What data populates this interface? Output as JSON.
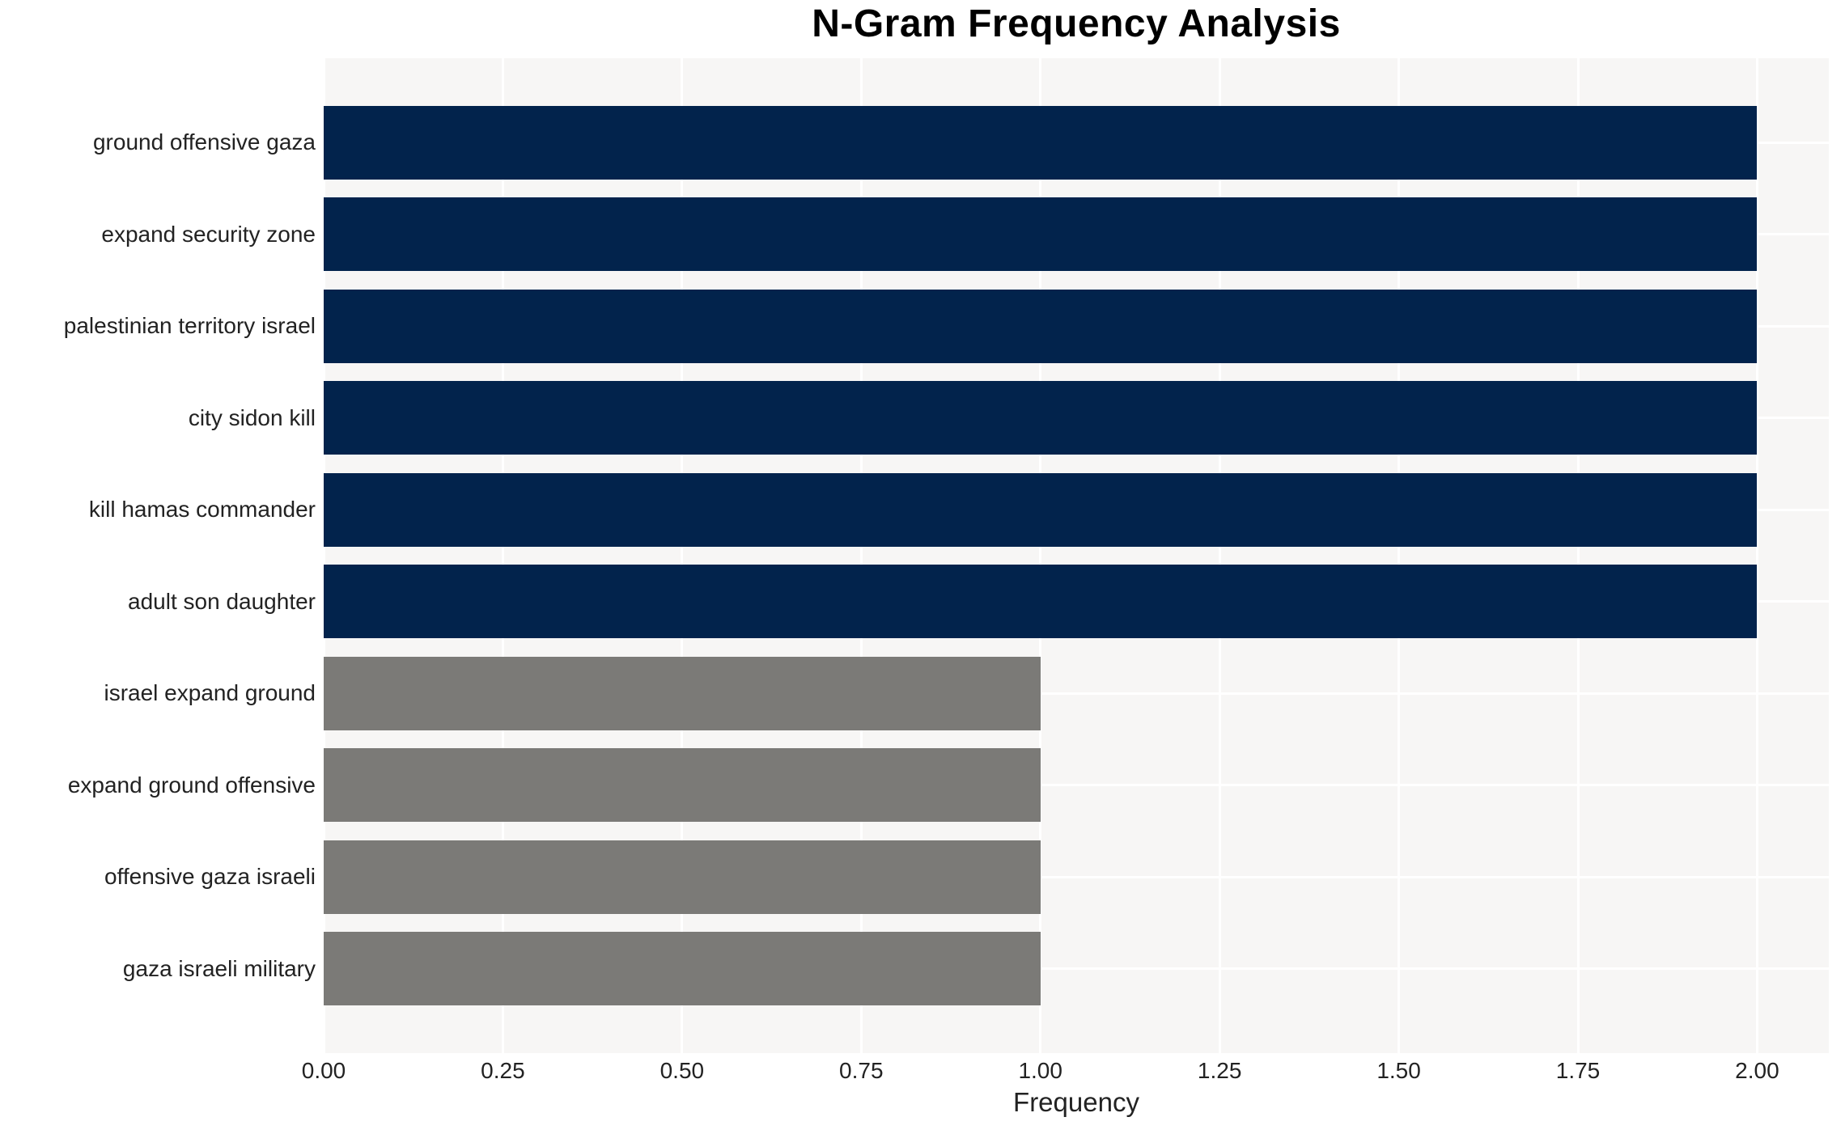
{
  "chart_data": {
    "type": "bar",
    "orientation": "horizontal",
    "title": "N-Gram Frequency Analysis",
    "xlabel": "Frequency",
    "ylabel": "",
    "categories": [
      "ground offensive gaza",
      "expand security zone",
      "palestinian territory israel",
      "city sidon kill",
      "kill hamas commander",
      "adult son daughter",
      "israel expand ground",
      "expand ground offensive",
      "offensive gaza israeli",
      "gaza israeli military"
    ],
    "values": [
      2,
      2,
      2,
      2,
      2,
      2,
      1,
      1,
      1,
      1
    ],
    "bar_colors": [
      "#02234c",
      "#02234c",
      "#02234c",
      "#02234c",
      "#02234c",
      "#02234c",
      "#7b7a77",
      "#7b7a77",
      "#7b7a77",
      "#7b7a77"
    ],
    "xlim": [
      0,
      2.1
    ],
    "xticks": [
      {
        "value": 0.0,
        "label": "0.00"
      },
      {
        "value": 0.25,
        "label": "0.25"
      },
      {
        "value": 0.5,
        "label": "0.50"
      },
      {
        "value": 0.75,
        "label": "0.75"
      },
      {
        "value": 1.0,
        "label": "1.00"
      },
      {
        "value": 1.25,
        "label": "1.25"
      },
      {
        "value": 1.5,
        "label": "1.50"
      },
      {
        "value": 1.75,
        "label": "1.75"
      },
      {
        "value": 2.0,
        "label": "2.00"
      }
    ],
    "grid": true,
    "legend": false,
    "colors": {
      "high_bar": "#02234c",
      "low_bar": "#7b7a77",
      "plot_background": "#f7f6f5",
      "gridline": "#ffffff",
      "text": "#222222",
      "title_text": "#000000"
    }
  }
}
